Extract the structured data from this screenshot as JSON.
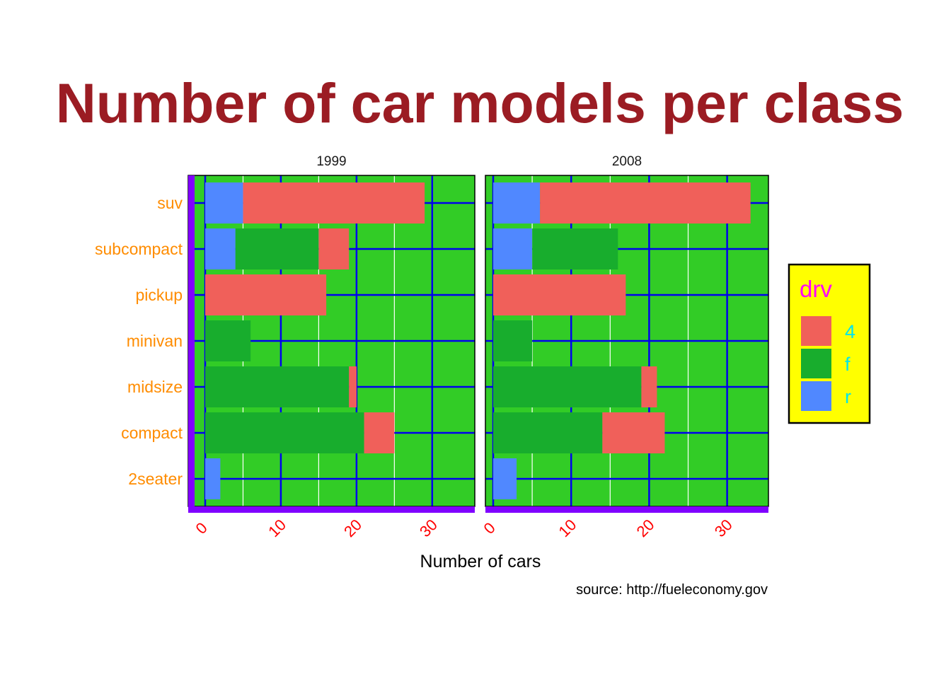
{
  "chart_data": {
    "type": "bar",
    "orientation": "horizontal",
    "stacked": true,
    "title": "Number of car models per class",
    "xlabel": "Number of cars",
    "ylabel": "",
    "caption": "source: http://fueleconomy.gov",
    "xlim": [
      0,
      34
    ],
    "x_ticks": [
      "0",
      "10",
      "20",
      "30"
    ],
    "categories": [
      "2seater",
      "compact",
      "midsize",
      "minivan",
      "pickup",
      "subcompact",
      "suv"
    ],
    "facets": [
      {
        "label": "1999",
        "series": [
          {
            "name": "4",
            "values": [
              0,
              4,
              1,
              0,
              16,
              4,
              24
            ]
          },
          {
            "name": "f",
            "values": [
              0,
              21,
              19,
              6,
              0,
              11,
              0
            ]
          },
          {
            "name": "r",
            "values": [
              2,
              0,
              0,
              0,
              0,
              4,
              5
            ]
          }
        ]
      },
      {
        "label": "2008",
        "series": [
          {
            "name": "4",
            "values": [
              0,
              8,
              2,
              0,
              17,
              0,
              27
            ]
          },
          {
            "name": "f",
            "values": [
              0,
              14,
              19,
              5,
              0,
              11,
              0
            ]
          },
          {
            "name": "r",
            "values": [
              3,
              0,
              0,
              0,
              0,
              5,
              6
            ]
          }
        ]
      }
    ],
    "legend": {
      "title": "drv",
      "position": "right",
      "entries": [
        {
          "label": "4",
          "color": "#f0605a"
        },
        {
          "label": "f",
          "color": "#18ad2d"
        },
        {
          "label": "r",
          "color": "#5088ff"
        }
      ]
    },
    "colors": {
      "panel_background": "#32cc26",
      "major_grid": "#0000ee",
      "minor_grid": "#ffffff",
      "axis_line": "#8000ff",
      "legend_background": "#ffff00"
    },
    "grid": true
  }
}
